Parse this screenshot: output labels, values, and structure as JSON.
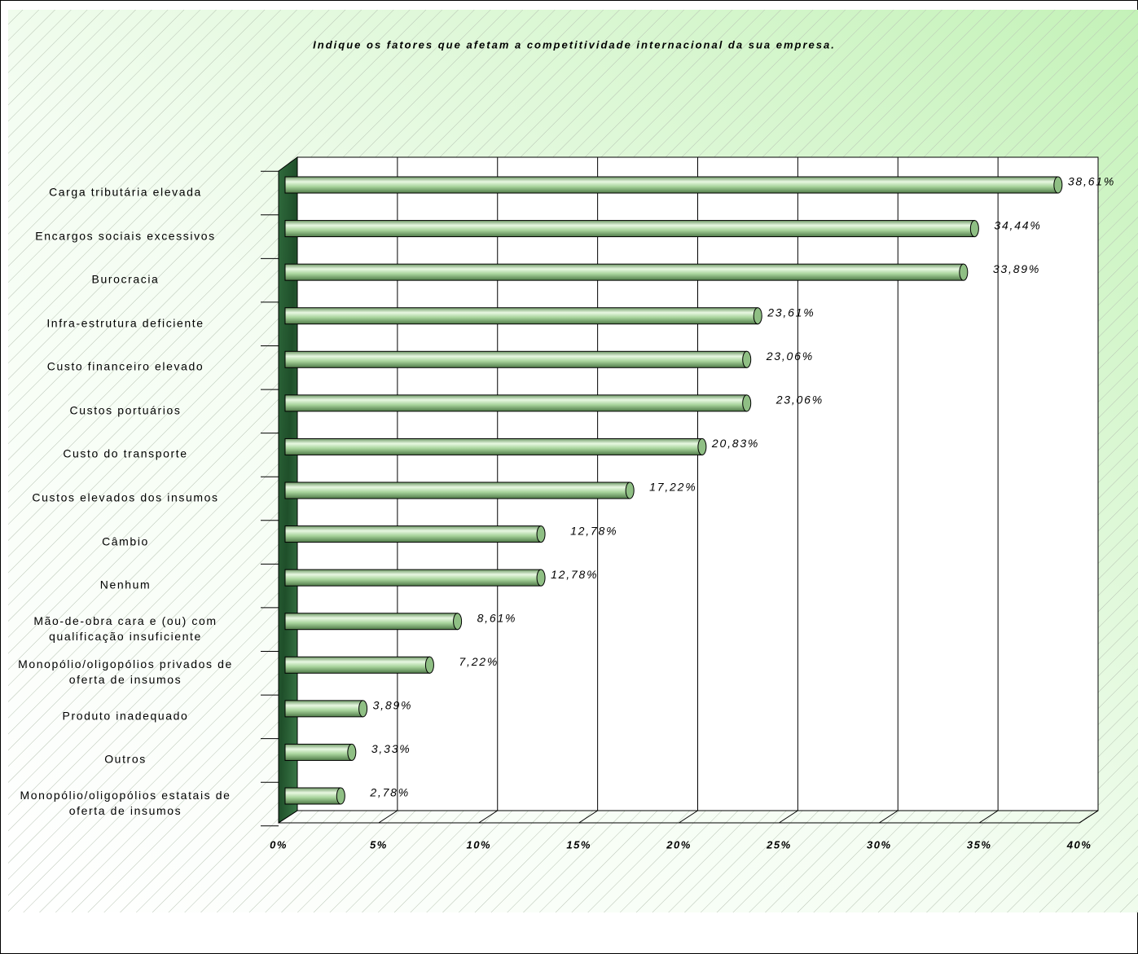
{
  "chart_data": {
    "type": "bar",
    "orientation": "horizontal",
    "title": "Indique os fatores que afetam a competitividade internacional da sua empresa.",
    "categories": [
      "Carga tributária elevada",
      "Encargos sociais excessivos",
      "Burocracia",
      "Infra-estrutura deficiente",
      "Custo financeiro elevado",
      "Custos portuários",
      "Custo do transporte",
      "Custos elevados dos insumos",
      "Câmbio",
      "Nenhum",
      "Mão-de-obra cara e (ou) com\nqualificação insuficiente",
      "Monopólio/oligopólios privados de\noferta de insumos",
      "Produto inadequado",
      "Outros",
      "Monopólio/oligopólios estatais de\noferta de insumos"
    ],
    "values": [
      38.61,
      34.44,
      33.89,
      23.61,
      23.06,
      23.06,
      20.83,
      17.22,
      12.78,
      12.78,
      8.61,
      7.22,
      3.89,
      3.33,
      2.78
    ],
    "value_labels": [
      "38,61%",
      "34,44%",
      "33,89%",
      "23,61%",
      "23,06%",
      "23,06%",
      "20,83%",
      "17,22%",
      "12,78%",
      "12,78%",
      "8,61%",
      "7,22%",
      "3,89%",
      "3,33%",
      "2,78%"
    ],
    "color": "#9ccc90",
    "xlim": [
      0,
      40
    ],
    "xticks": [
      {
        "value": 0,
        "label": "0%"
      },
      {
        "value": 5,
        "label": "5%"
      },
      {
        "value": 10,
        "label": "10%"
      },
      {
        "value": 15,
        "label": "15%"
      },
      {
        "value": 20,
        "label": "20%"
      },
      {
        "value": 25,
        "label": "25%"
      },
      {
        "value": 30,
        "label": "30%"
      },
      {
        "value": 35,
        "label": "35%"
      },
      {
        "value": 40,
        "label": "40%"
      }
    ],
    "grid": true
  }
}
